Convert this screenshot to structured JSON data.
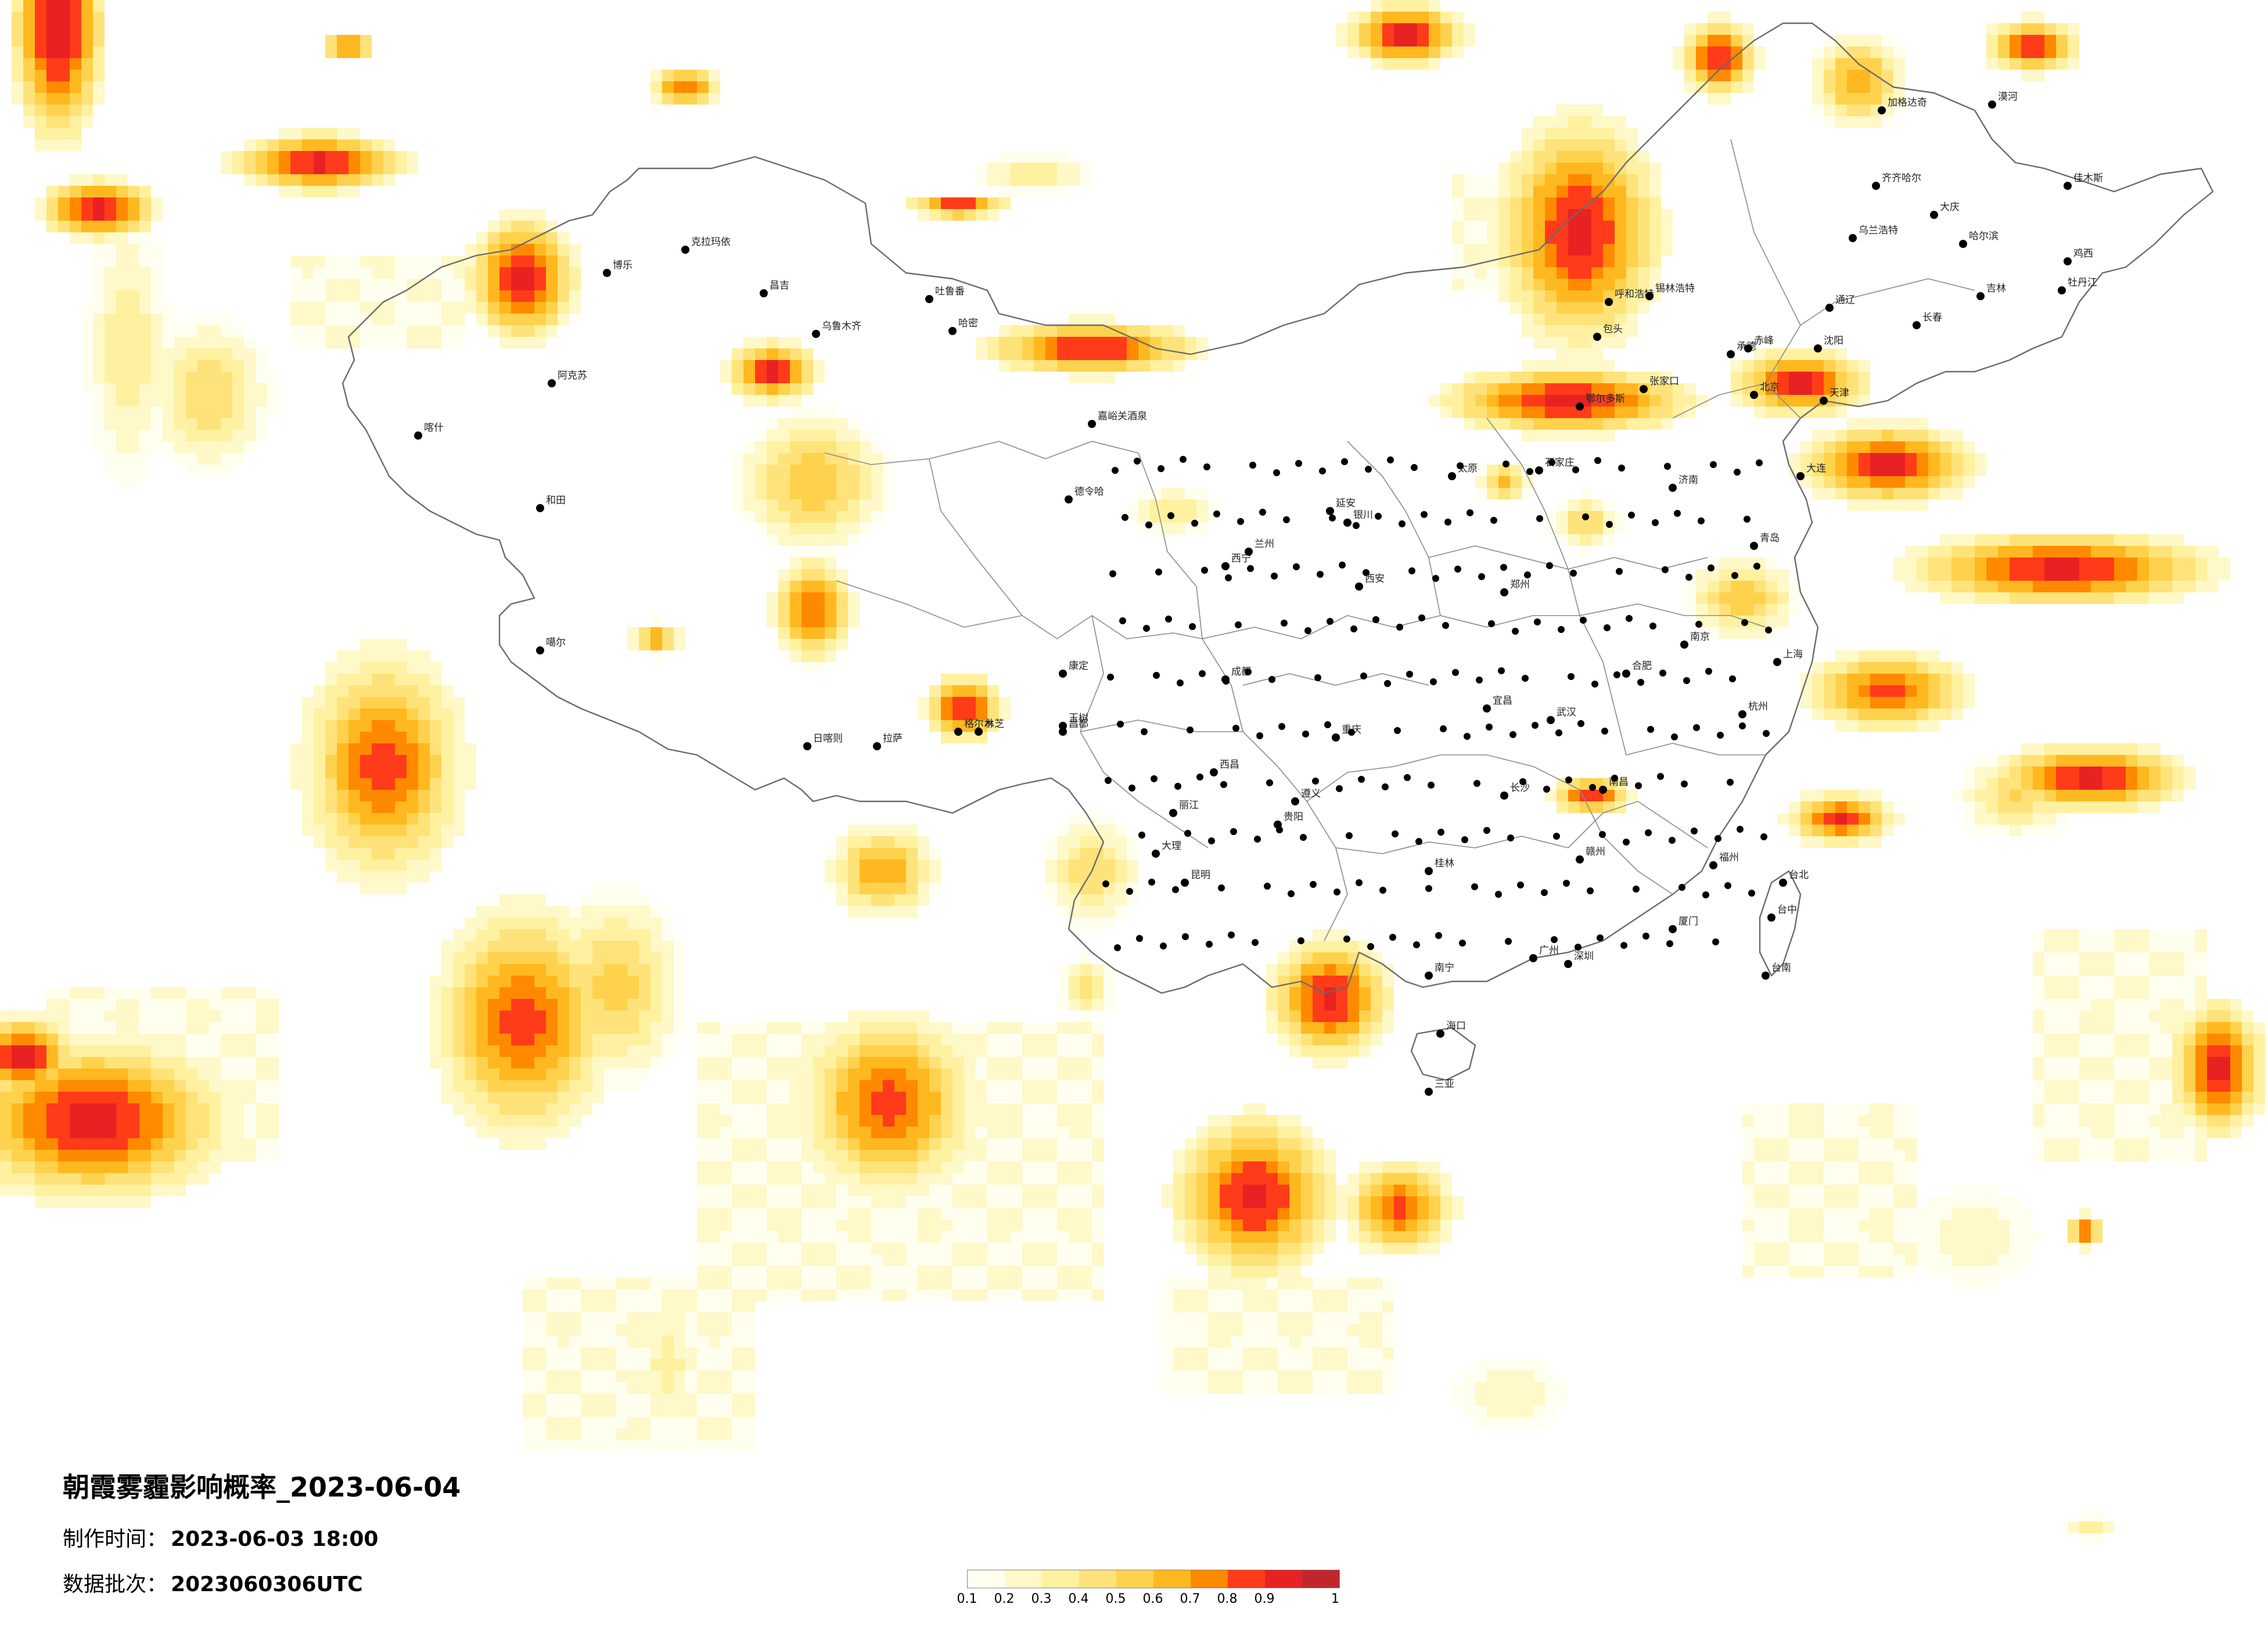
{
  "title": "朝霞雾霾影响概率_2023-06-04",
  "made_time_label": "制作时间：",
  "made_time_value": "2023-06-03 18:00",
  "batch_label": "数据批次：",
  "batch_value": "2023060306UTC",
  "colors": {
    "0.1": "#fffff0",
    "0.2": "#fff8c8",
    "0.3": "#fff1a0",
    "0.4": "#ffe27a",
    "0.5": "#ffd24d",
    "0.6": "#ffb81f",
    "0.7": "#ff8a00",
    "0.8": "#ff3b1a",
    "0.9": "#e82222",
    "1": "#c0262c"
  },
  "legend": {
    "ticks": [
      "0.1",
      "0.2",
      "0.3",
      "0.4",
      "0.5",
      "0.6",
      "0.7",
      "0.8",
      "0.9",
      "1"
    ]
  },
  "cities": [
    {
      "name": "克拉玛依"
    },
    {
      "name": "博乐"
    },
    {
      "name": "昌吉"
    },
    {
      "name": "乌鲁木齐"
    },
    {
      "name": "吐鲁番"
    },
    {
      "name": "哈密"
    },
    {
      "name": "阿克苏"
    },
    {
      "name": "喀什"
    },
    {
      "name": "和田"
    },
    {
      "name": "嘉峪关酒泉"
    },
    {
      "name": "德令哈"
    },
    {
      "name": "格尔木"
    },
    {
      "name": "噶尔"
    },
    {
      "name": "日喀则"
    },
    {
      "name": "拉萨"
    },
    {
      "name": "林芝"
    },
    {
      "name": "昌都"
    },
    {
      "name": "玉树"
    },
    {
      "name": "西宁"
    },
    {
      "name": "兰州"
    },
    {
      "name": "银川"
    },
    {
      "name": "呼和浩特"
    },
    {
      "name": "包头"
    },
    {
      "name": "鄂尔多斯"
    },
    {
      "name": "太原"
    },
    {
      "name": "石家庄"
    },
    {
      "name": "北京"
    },
    {
      "name": "天津"
    },
    {
      "name": "张家口"
    },
    {
      "name": "承德"
    },
    {
      "name": "赤峰"
    },
    {
      "name": "锡林浩特"
    },
    {
      "name": "沈阳"
    },
    {
      "name": "大连"
    },
    {
      "name": "长春"
    },
    {
      "name": "吉林"
    },
    {
      "name": "哈尔滨"
    },
    {
      "name": "齐齐哈尔"
    },
    {
      "name": "大庆"
    },
    {
      "name": "佳木斯"
    },
    {
      "name": "鸡西"
    },
    {
      "name": "牡丹江"
    },
    {
      "name": "加格达奇"
    },
    {
      "name": "漠河"
    },
    {
      "name": "乌兰浩特"
    },
    {
      "name": "通辽"
    },
    {
      "name": "济南"
    },
    {
      "name": "青岛"
    },
    {
      "name": "郑州"
    },
    {
      "name": "西安"
    },
    {
      "name": "延安"
    },
    {
      "name": "合肥"
    },
    {
      "name": "南京"
    },
    {
      "name": "上海"
    },
    {
      "name": "杭州"
    },
    {
      "name": "武汉"
    },
    {
      "name": "长沙"
    },
    {
      "name": "南昌"
    },
    {
      "name": "福州"
    },
    {
      "name": "厦门"
    },
    {
      "name": "广州"
    },
    {
      "name": "深圳"
    },
    {
      "name": "南宁"
    },
    {
      "name": "海口"
    },
    {
      "name": "三亚"
    },
    {
      "name": "昆明"
    },
    {
      "name": "贵阳"
    },
    {
      "name": "成都"
    },
    {
      "name": "重庆"
    },
    {
      "name": "康定"
    },
    {
      "name": "台北"
    },
    {
      "name": "台中"
    },
    {
      "name": "台南"
    },
    {
      "name": "大理"
    },
    {
      "name": "丽江"
    },
    {
      "name": "西昌"
    },
    {
      "name": "遵义"
    },
    {
      "name": "桂林"
    },
    {
      "name": "赣州"
    },
    {
      "name": "宜昌"
    }
  ]
}
